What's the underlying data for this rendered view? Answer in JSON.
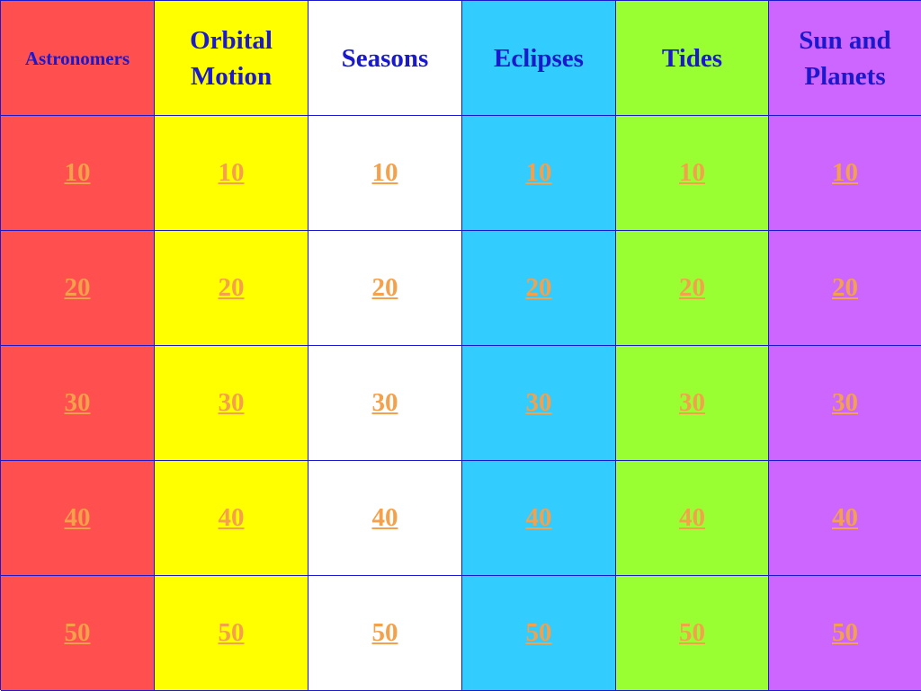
{
  "board": {
    "categories": [
      {
        "label": "Astronomers",
        "color": "#ff4f4f"
      },
      {
        "label": "Orbital\nMotion",
        "color": "#ffff00"
      },
      {
        "label": "Seasons",
        "color": "#ffffff"
      },
      {
        "label": "Eclipses",
        "color": "#33ccff"
      },
      {
        "label": "Tides",
        "color": "#99ff33"
      },
      {
        "label": "Sun and\nPlanets",
        "color": "#cc66ff"
      }
    ],
    "point_values": [
      "10",
      "20",
      "30",
      "40",
      "50"
    ],
    "header_text_color": "#1a1acc",
    "value_text_color": "#f5a04a"
  }
}
